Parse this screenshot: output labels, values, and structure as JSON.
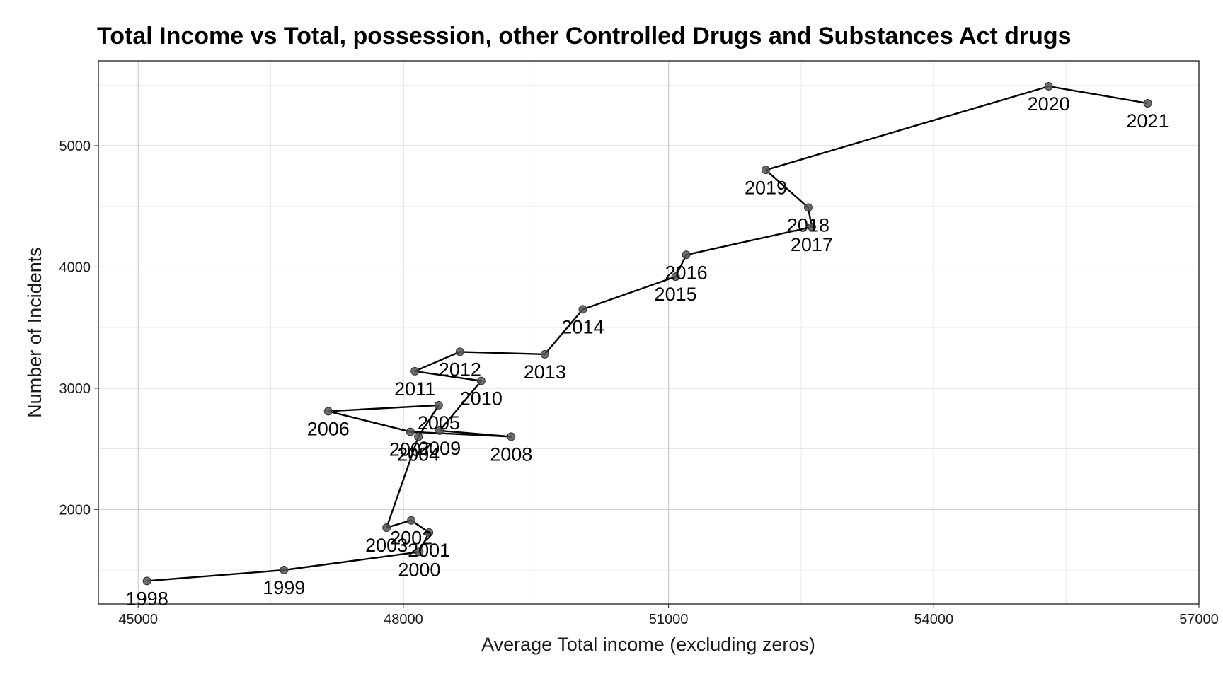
{
  "chart_data": {
    "type": "line",
    "title": "Total Income vs Total, possession, other Controlled Drugs and Substances Act drugs",
    "xlabel": "Average Total income (excluding zeros)",
    "ylabel": "Number of Incidents",
    "xlim": [
      44550,
      57000
    ],
    "ylim": [
      1220,
      5700
    ],
    "xticks": [
      45000,
      48000,
      51000,
      54000,
      57000
    ],
    "yticks": [
      2000,
      3000,
      4000,
      5000
    ],
    "grid": true,
    "legend": "none",
    "points": [
      {
        "label": "1998",
        "x": 45100,
        "y": 1410
      },
      {
        "label": "1999",
        "x": 46650,
        "y": 1500
      },
      {
        "label": "2000",
        "x": 48180,
        "y": 1650
      },
      {
        "label": "2001",
        "x": 48290,
        "y": 1810
      },
      {
        "label": "2002",
        "x": 48090,
        "y": 1910
      },
      {
        "label": "2003",
        "x": 47810,
        "y": 1850
      },
      {
        "label": "2004",
        "x": 48170,
        "y": 2600
      },
      {
        "label": "2005",
        "x": 48400,
        "y": 2860
      },
      {
        "label": "2006",
        "x": 47150,
        "y": 2810
      },
      {
        "label": "2007",
        "x": 48080,
        "y": 2640
      },
      {
        "label": "2008",
        "x": 49220,
        "y": 2600
      },
      {
        "label": "2009",
        "x": 48410,
        "y": 2650
      },
      {
        "label": "2010",
        "x": 48880,
        "y": 3060
      },
      {
        "label": "2011",
        "x": 48130,
        "y": 3140
      },
      {
        "label": "2012",
        "x": 48640,
        "y": 3300
      },
      {
        "label": "2013",
        "x": 49600,
        "y": 3280
      },
      {
        "label": "2014",
        "x": 50030,
        "y": 3650
      },
      {
        "label": "2015",
        "x": 51080,
        "y": 3920
      },
      {
        "label": "2016",
        "x": 51200,
        "y": 4100
      },
      {
        "label": "2017",
        "x": 52620,
        "y": 4330
      },
      {
        "label": "2018",
        "x": 52580,
        "y": 4490
      },
      {
        "label": "2019",
        "x": 52100,
        "y": 4800
      },
      {
        "label": "2020",
        "x": 55300,
        "y": 5490
      },
      {
        "label": "2021",
        "x": 56420,
        "y": 5350
      }
    ]
  }
}
